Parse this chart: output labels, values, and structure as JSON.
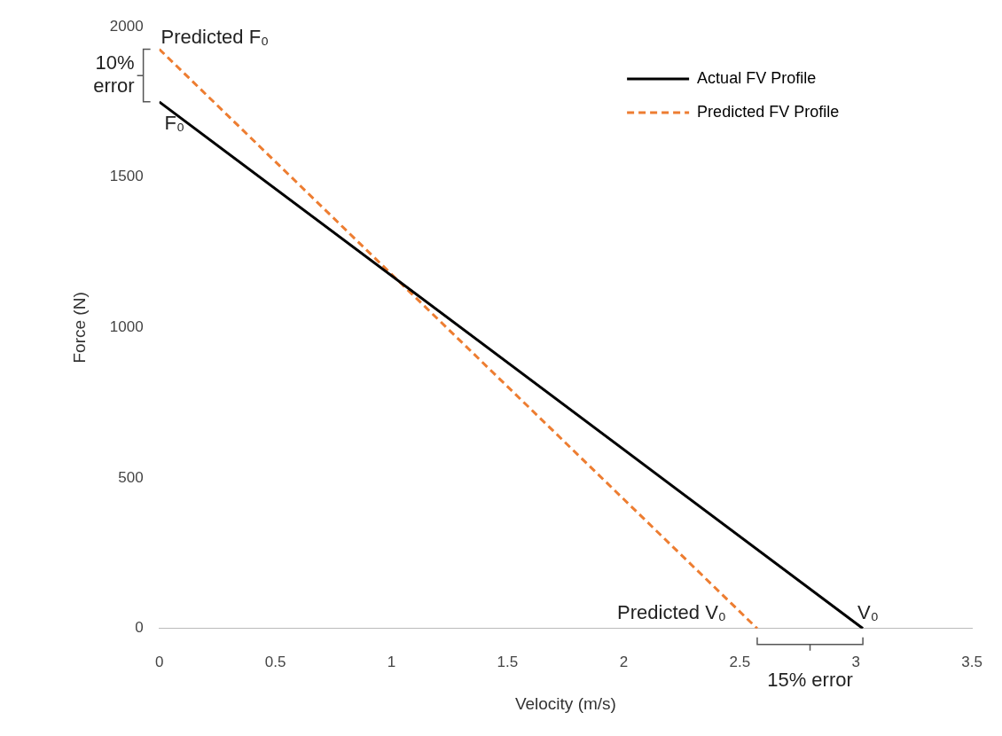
{
  "chart_data": {
    "type": "line",
    "xlabel": "Velocity (m/s)",
    "ylabel": "Force (N)",
    "xlim": [
      0,
      3.5
    ],
    "xticks": [
      0,
      0.5,
      1,
      1.5,
      2,
      2.5,
      3,
      3.5
    ],
    "ylim": [
      0,
      2000
    ],
    "yticks": [
      0,
      500,
      1000,
      1500,
      2000
    ],
    "grid": false,
    "legend": "top right",
    "marker": "none",
    "series": [
      {
        "name": "Actual FV Profile",
        "color": "#000000",
        "x": [
          0,
          3.03
        ],
        "values": [
          1750,
          0
        ],
        "line_style": "solid"
      },
      {
        "name": "Predicted FV Profile",
        "color": "#ed7d31",
        "x": [
          0,
          2.575
        ],
        "values": [
          1925,
          0
        ],
        "line_style": "dashed"
      }
    ],
    "annotations": [
      {
        "text": "Predicted F₀",
        "x": 0,
        "y": 1925
      },
      {
        "text": "F₀",
        "x": 0,
        "y": 1750
      },
      {
        "text": "Predicted V₀",
        "x": 2.575,
        "y": 0
      },
      {
        "text": "V₀",
        "x": 3.03,
        "y": 0
      },
      "10% error",
      "15% error"
    ]
  }
}
